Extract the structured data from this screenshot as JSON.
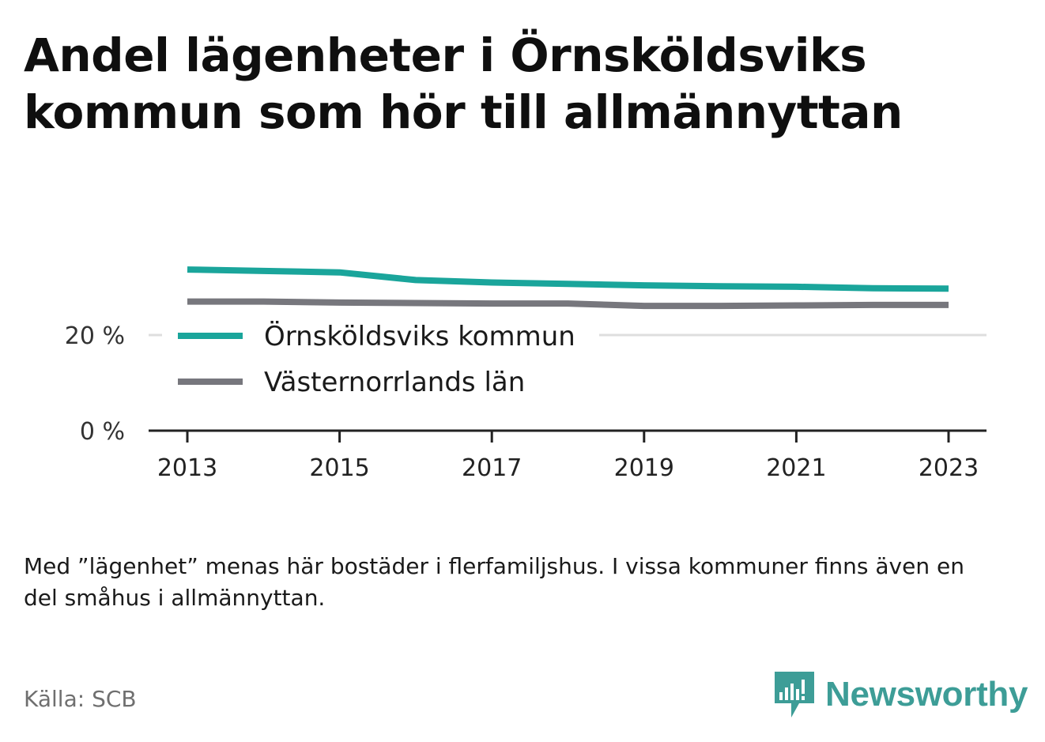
{
  "title": "Andel lägenheter i Örnsköldsviks kommun som hör till allmännyttan",
  "note": "Med ”lägenhet” menas här bostäder i flerfamiljshus. I vissa kommuner finns även en del småhus i allmännyttan.",
  "source": "Källa: SCB",
  "brand": {
    "name": "Newsworthy",
    "icon": "newsworthy-logo-icon",
    "color": "#3d9d97"
  },
  "chart_data": {
    "type": "line",
    "title": "Andel lägenheter i Örnsköldsviks kommun som hör till allmännyttan",
    "xlabel": "",
    "ylabel": "",
    "ylim": [
      0,
      35
    ],
    "y_ticks": [
      {
        "value": 0,
        "label": "0 %"
      },
      {
        "value": 20,
        "label": "20 %"
      }
    ],
    "x_ticks": [
      2013,
      2015,
      2017,
      2019,
      2021,
      2023
    ],
    "grid": true,
    "legend_position": "top-left",
    "x": [
      2013,
      2014,
      2015,
      2016,
      2017,
      2018,
      2019,
      2020,
      2021,
      2022,
      2023
    ],
    "series": [
      {
        "name": "Örnsköldsviks kommun",
        "color": "#1aa59b",
        "values": [
          33.7,
          33.4,
          33.1,
          31.5,
          31.0,
          30.7,
          30.4,
          30.2,
          30.1,
          29.8,
          29.7
        ]
      },
      {
        "name": "Västernorrlands län",
        "color": "#77777d",
        "values": [
          27.0,
          27.0,
          26.8,
          26.7,
          26.6,
          26.6,
          26.1,
          26.1,
          26.2,
          26.3,
          26.3
        ]
      }
    ]
  }
}
